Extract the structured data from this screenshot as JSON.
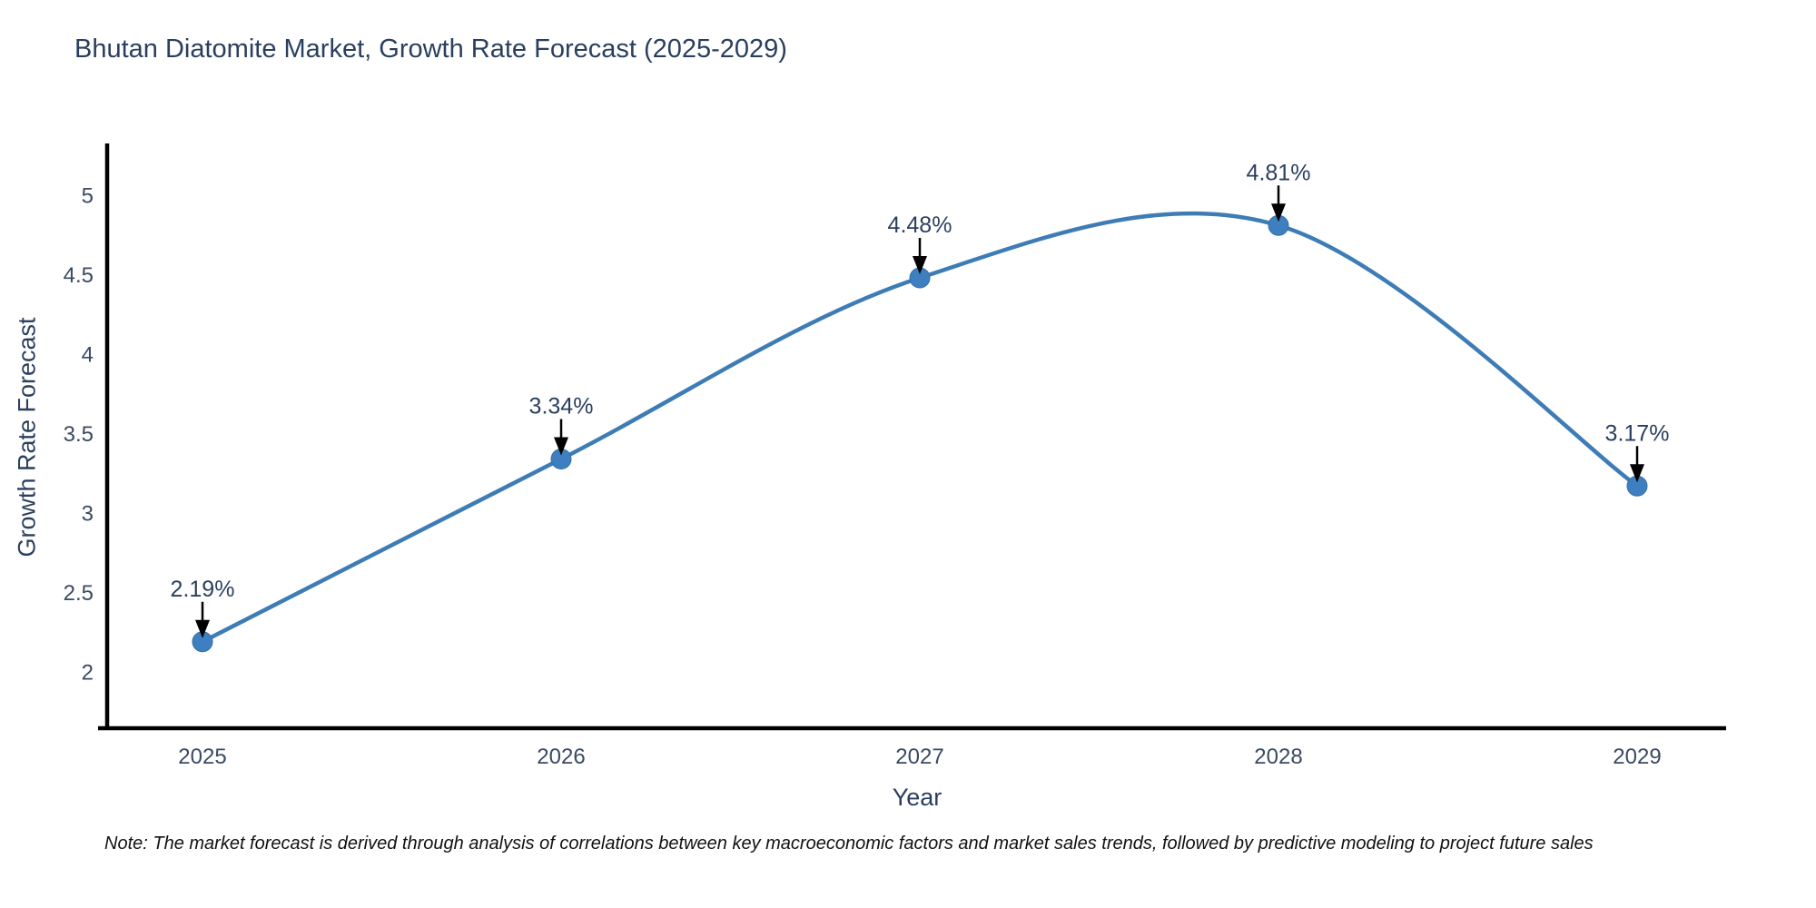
{
  "chart_data": {
    "type": "line",
    "title": "Bhutan Diatomite Market, Growth Rate Forecast (2025-2029)",
    "xlabel": "Year",
    "ylabel": "Growth Rate Forecast",
    "x": [
      2025,
      2026,
      2027,
      2028,
      2029
    ],
    "values": [
      2.19,
      3.34,
      4.48,
      4.81,
      3.17
    ],
    "point_labels": [
      "2.19%",
      "3.34%",
      "4.48%",
      "4.81%",
      "3.17%"
    ],
    "xtick_labels": [
      "2025",
      "2026",
      "2027",
      "2028",
      "2029"
    ],
    "ytick_values": [
      2,
      2.5,
      3,
      3.5,
      4,
      4.5,
      5
    ],
    "ytick_labels": [
      "2",
      "2.5",
      "3",
      "3.5",
      "4",
      "4.5",
      "5"
    ],
    "xlim": [
      2024.72,
      2029.25
    ],
    "ylim": [
      1.65,
      5.33
    ],
    "grid": false,
    "legend_position": "none",
    "line_shape": "spline",
    "colors": {
      "line": "#3e7cb5",
      "marker": "#3d7fc0",
      "marker_edge": "#36719f",
      "axis_line": "#000000",
      "tick_text": "#3a4a62",
      "annotation_text": "#2a3f5f",
      "annotation_arrow": "#000000",
      "title_text": "#2a3f5f"
    }
  },
  "note": "Note: The market forecast is derived through analysis of correlations between key macroeconomic factors and market sales trends, followed by predictive modeling to project future sales"
}
